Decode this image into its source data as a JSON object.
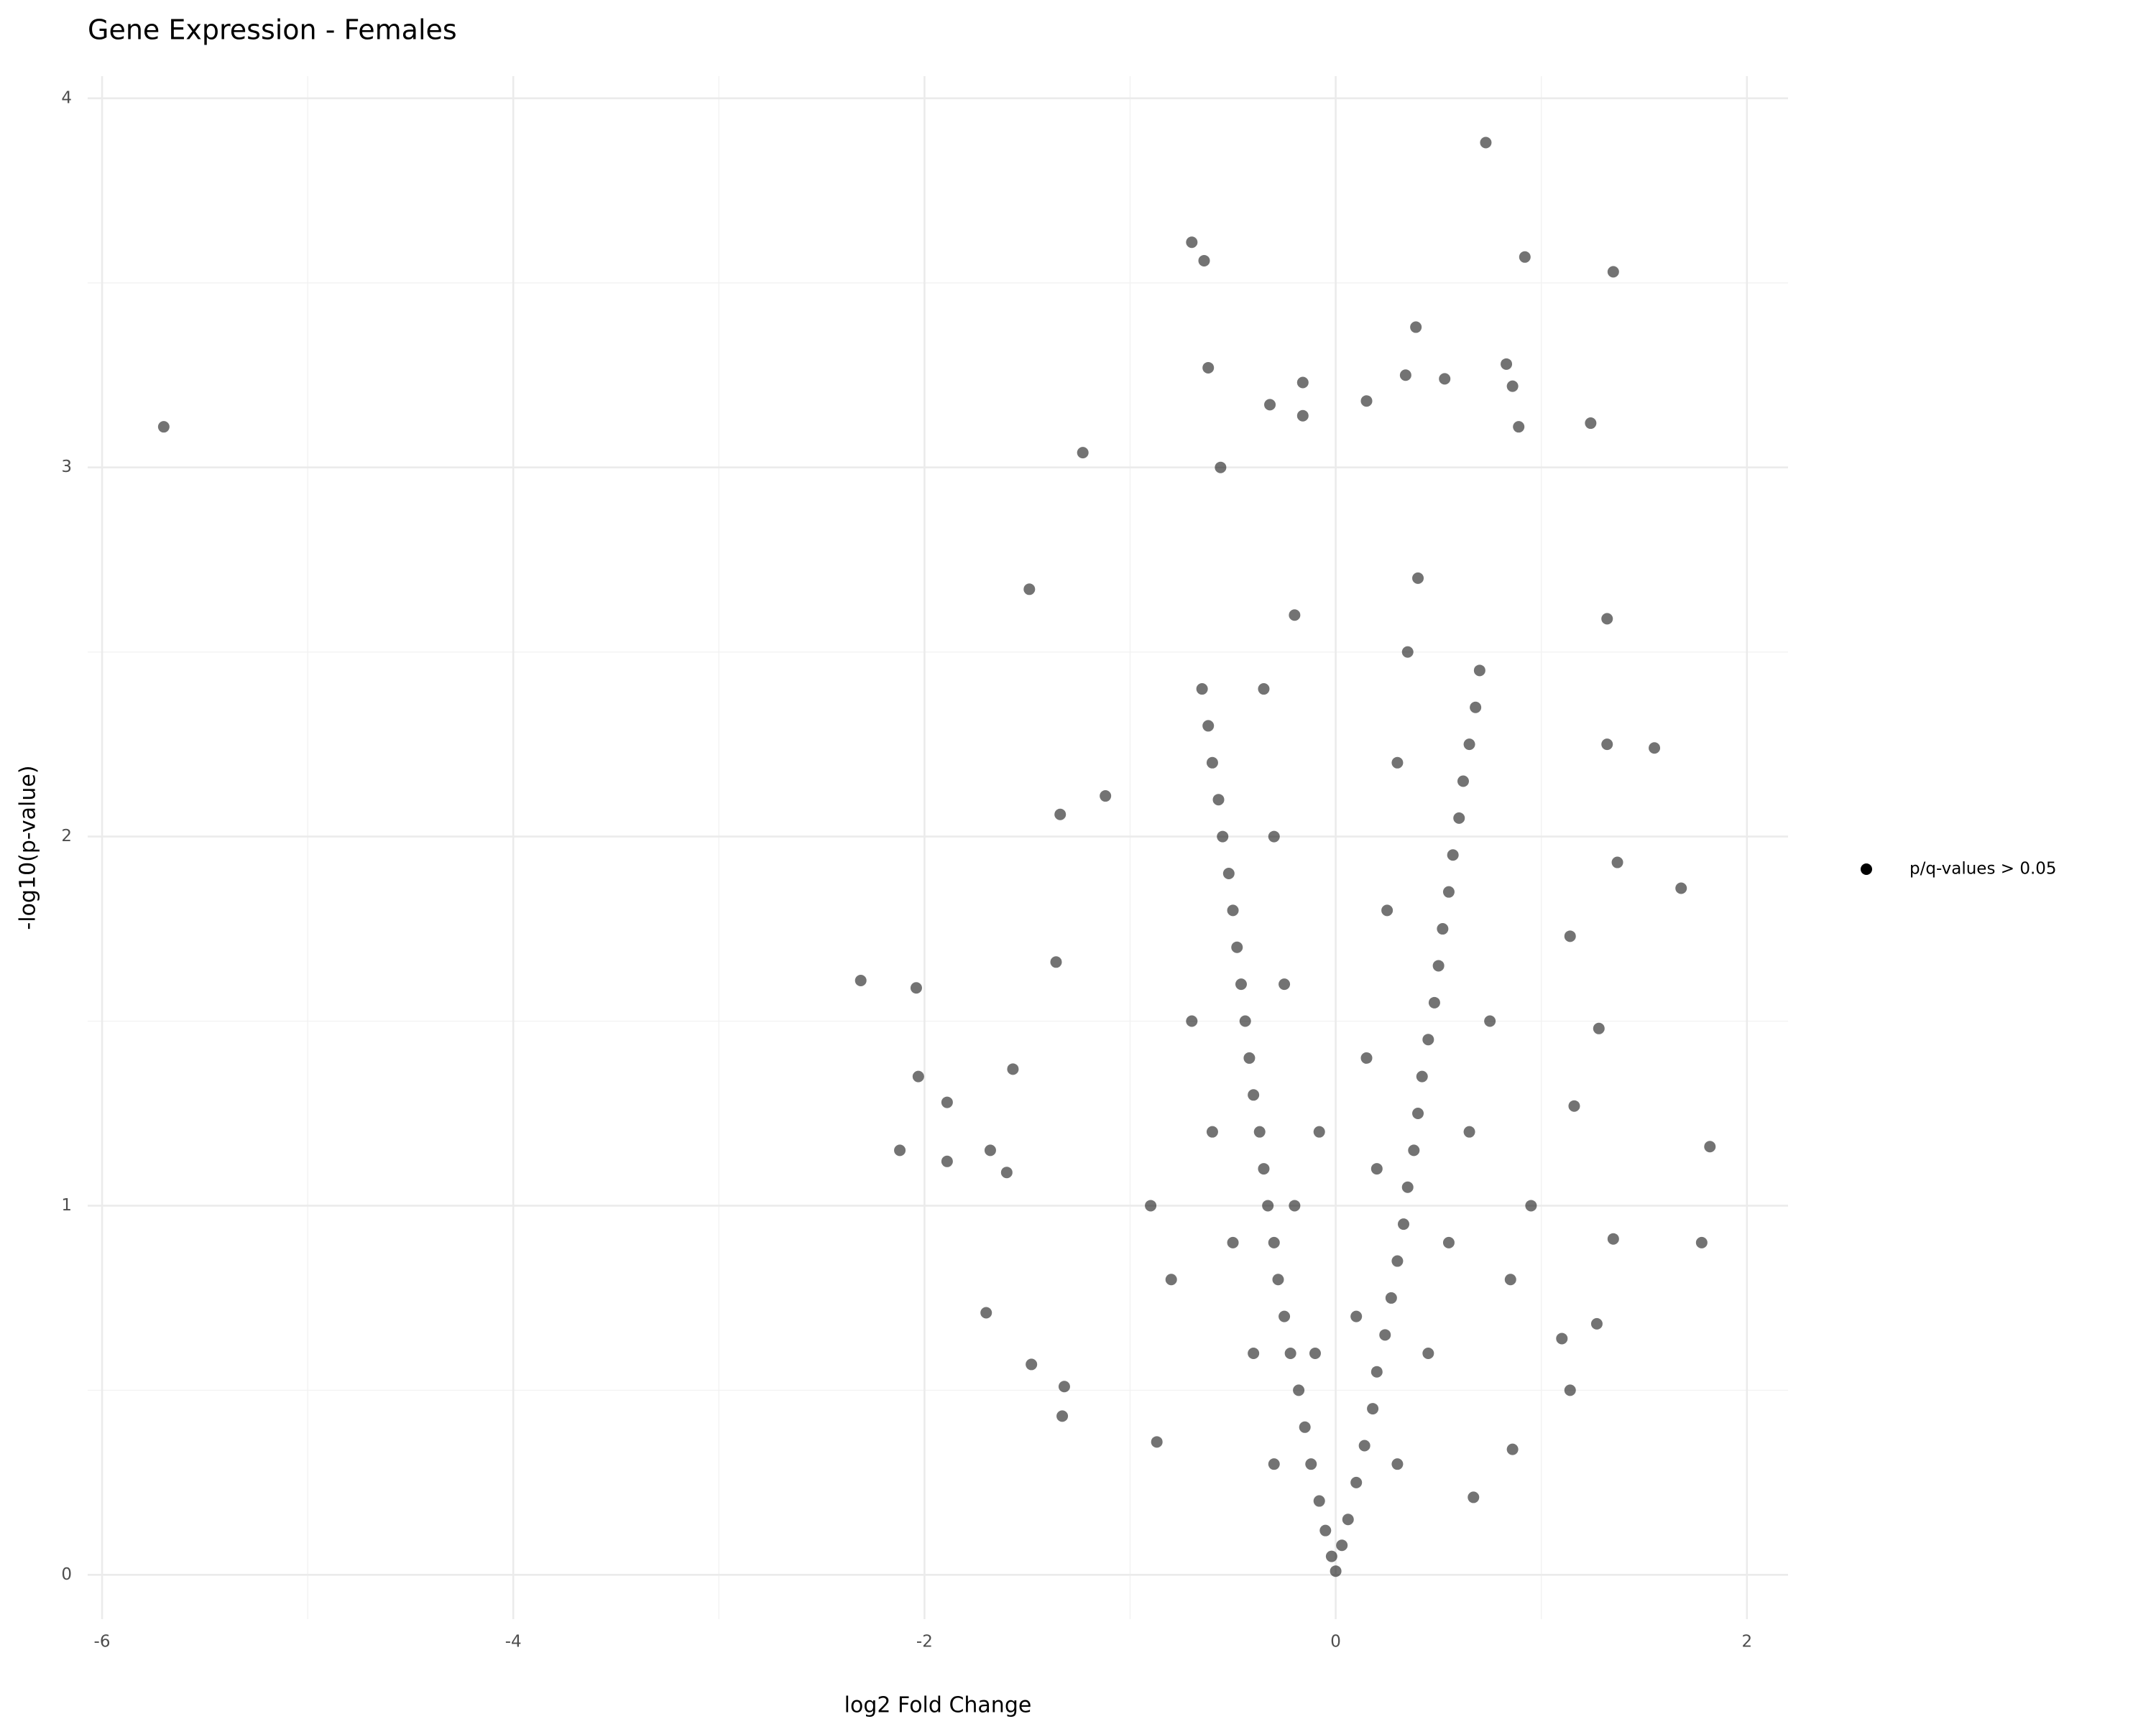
{
  "chart_data": {
    "type": "scatter",
    "title": "Gene Expression - Females",
    "x_label": "log2 Fold Change",
    "y_label": "-log10(p-value)",
    "xlim": [
      -6.07,
      2.2
    ],
    "ylim": [
      -0.12,
      4.06
    ],
    "xticks": [
      -6,
      -4,
      -2,
      0,
      2
    ],
    "yticks": [
      0,
      1,
      2,
      3,
      4
    ],
    "xminor": [
      -5,
      -3,
      -1,
      1
    ],
    "yminor": [
      0.5,
      1.5,
      2.5,
      3.5
    ],
    "grid": true,
    "legend": "right",
    "series": [
      {
        "name": "p/q-values > 0.05",
        "color": "#000000",
        "x": [
          -5.7,
          0.73,
          -0.7,
          -0.64,
          0.92,
          1.35,
          -0.62,
          -0.16,
          0.53,
          0.39,
          0.34,
          0.15,
          -0.32,
          -0.16,
          0.83,
          0.86,
          1.24,
          0.89,
          -1.23,
          -0.56,
          -1.49,
          1.32,
          1.55,
          1.32,
          1.68,
          1.37,
          1.82,
          1.78,
          1.35,
          -2.31,
          -2.04,
          -2.03,
          -2.12,
          -1.89,
          -1.89,
          -1.68,
          -1.6,
          -1.57,
          -1.7,
          -1.34,
          -1.12,
          -1.36,
          -1.48,
          -1.32,
          -1.33,
          1.14,
          1.14,
          1.28,
          1.27,
          1.1,
          1.16,
          0.86,
          0.67,
          -0.87,
          0,
          -0.02,
          0.03,
          -0.05,
          0.06,
          -0.08,
          0.1,
          -0.12,
          0.14,
          -0.15,
          0.18,
          -0.18,
          0.2,
          -0.22,
          0.24,
          -0.25,
          0.27,
          -0.28,
          0.3,
          -0.3,
          0.33,
          -0.33,
          0.35,
          -0.35,
          0.38,
          -0.37,
          0.4,
          -0.4,
          0.42,
          -0.42,
          0.45,
          -0.44,
          0.48,
          -0.46,
          0.5,
          -0.48,
          0.52,
          -0.5,
          0.55,
          -0.52,
          0.57,
          -0.55,
          0.6,
          -0.57,
          0.62,
          -0.6,
          0.65,
          -0.62,
          0.68,
          -0.65,
          0.7,
          -0.3,
          0.3,
          -0.4,
          0.45,
          -0.5,
          0.55,
          -0.6,
          0.65,
          -0.7,
          0.75,
          -0.1,
          0.1,
          -0.2,
          0.2,
          -0.08,
          0.15,
          -0.25,
          0.25,
          -0.3,
          0.3,
          -0.35,
          0.35,
          -0.2,
          0.4,
          -0.8,
          0.85,
          -0.9,
          0.95
        ],
        "values": [
          3.11,
          3.88,
          3.61,
          3.56,
          3.57,
          3.53,
          3.27,
          3.23,
          3.24,
          3.38,
          3.25,
          3.18,
          3.17,
          3.14,
          3.28,
          3.22,
          3.12,
          3.11,
          3.04,
          3.0,
          2.67,
          2.59,
          2.24,
          2.25,
          1.86,
          1.93,
          1.16,
          0.9,
          0.91,
          1.61,
          1.59,
          1.35,
          1.15,
          1.28,
          1.12,
          1.15,
          1.09,
          1.37,
          0.71,
          2.06,
          2.11,
          1.66,
          0.57,
          0.51,
          0.43,
          0.5,
          1.73,
          1.48,
          0.68,
          0.64,
          1.27,
          0.34,
          0.21,
          0.36,
          0.01,
          0.05,
          0.08,
          0.12,
          0.15,
          0.2,
          0.25,
          0.3,
          0.35,
          0.4,
          0.45,
          0.5,
          0.55,
          0.6,
          0.65,
          0.7,
          0.75,
          0.8,
          0.85,
          0.9,
          0.95,
          1.0,
          1.05,
          1.1,
          1.15,
          1.2,
          1.25,
          1.3,
          1.35,
          1.4,
          1.45,
          1.5,
          1.55,
          1.6,
          1.65,
          1.7,
          1.75,
          1.8,
          1.85,
          1.9,
          1.95,
          2.0,
          2.05,
          2.1,
          2.15,
          2.2,
          2.25,
          2.3,
          2.35,
          2.4,
          2.45,
          0.3,
          0.3,
          0.6,
          0.6,
          0.9,
          0.9,
          1.2,
          1.2,
          1.5,
          1.5,
          0.6,
          0.7,
          1.0,
          1.1,
          1.2,
          1.4,
          1.6,
          1.8,
          2.0,
          2.2,
          2.4,
          2.5,
          2.6,
          2.7,
          0.8,
          0.8,
          1.0,
          1.0
        ]
      }
    ]
  }
}
